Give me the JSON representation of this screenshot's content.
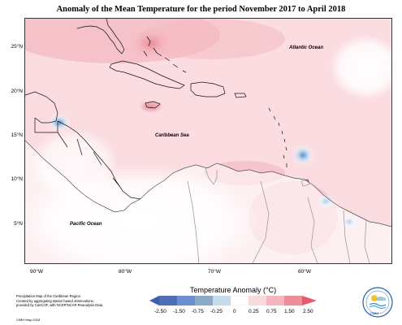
{
  "title": "Anomaly of the Mean Temperature for the period November 2017 to April 2018",
  "latitudes": [
    "25°N",
    "20°N",
    "15°N",
    "10°N",
    "5°N"
  ],
  "longitudes": [
    "90°W",
    "80°W",
    "70°W",
    "60°W"
  ],
  "ocean_labels": {
    "atlantic": "Atlantic Ocean",
    "caribbean": "Caribbean Sea",
    "pacific": "Pacific Ocean"
  },
  "legend": {
    "title": "Temperature Anomaly (°C)",
    "ticks": [
      "-2.50",
      "-1.50",
      "-0.75",
      "-0.25",
      "0",
      "0.25",
      "0.75",
      "1.50",
      "2.50"
    ],
    "colors": [
      "#3e5fae",
      "#6d8fd0",
      "#8aa9c7",
      "#c4dcec",
      "#ffffff",
      "#f9dadd",
      "#f4b7bf",
      "#ee8c98",
      "#e8586a"
    ]
  },
  "footer": {
    "line1": "Precipitation Map of the Caribbean Region.",
    "line2": "Created by aggregating station based observations,",
    "line3": "provided by CariCOF, with NCEP/NCAR Reanalysis Data.",
    "credit": "CIMH May-2018",
    "logo_text": "CIMH"
  },
  "chart_data": {
    "type": "heatmap",
    "title": "Anomaly of the Mean Temperature for the period November 2017 to April 2018",
    "colorbar_label": "Temperature Anomaly (°C)",
    "colorbar_ticks": [
      -2.5,
      -1.5,
      -0.75,
      -0.25,
      0,
      0.25,
      0.75,
      1.5,
      2.5
    ],
    "x_ticks": [
      "90°W",
      "80°W",
      "70°W",
      "60°W"
    ],
    "y_ticks": [
      "25°N",
      "20°N",
      "15°N",
      "10°N",
      "5°N"
    ]
  }
}
